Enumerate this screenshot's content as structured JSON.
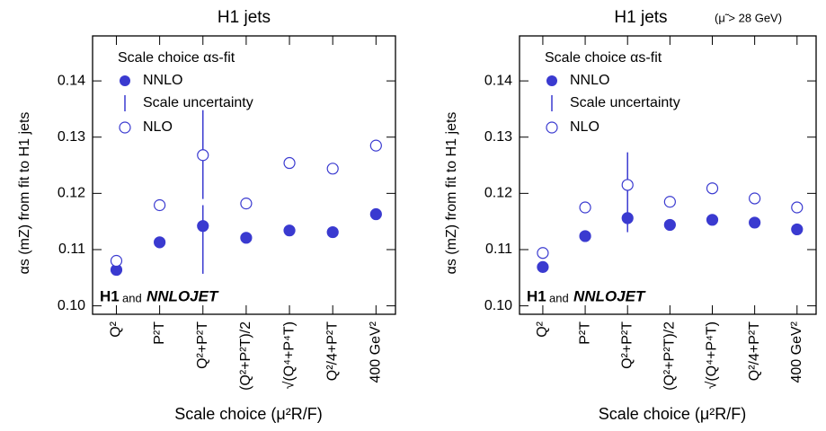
{
  "chart_data": [
    {
      "type": "scatter",
      "title": "H1 jets",
      "y_label": "αs (mZ) from fit to H1 jets",
      "x_label": "Scale choice (μ²R/F)",
      "legend_title": "Scale choice αs-fit",
      "error_label": "Scale uncertainty",
      "annotation": [
        "H1",
        "and",
        "NNLOJET"
      ],
      "categories": [
        "Q²",
        "P²T",
        "Q²+P²T",
        "(Q²+P²T)/2",
        "√(Q⁴+P⁴T)",
        "Q²/4+P²T",
        "400 GeV²"
      ],
      "ylim": [
        0.0985,
        0.148
      ],
      "yticks": [
        {
          "value": 0.1,
          "label": "0.10"
        },
        0.11,
        0.12,
        0.13,
        0.14
      ],
      "series": [
        {
          "name": "NNLO",
          "color": "#3a3ad0",
          "filled": true,
          "values": [
            0.1064,
            0.1113,
            0.1142,
            0.1121,
            0.1134,
            0.1131,
            0.1163
          ],
          "error_range": [
            null,
            null,
            [
              0.1057,
              0.1179
            ],
            null,
            null,
            null,
            null
          ]
        },
        {
          "name": "NLO",
          "color": "#3a3ad0",
          "filled": false,
          "values": [
            0.108,
            0.1179,
            0.1268,
            0.1182,
            0.1254,
            0.1244,
            0.1285
          ],
          "error_range": [
            null,
            null,
            [
              0.119,
              0.1348
            ],
            null,
            null,
            null,
            null
          ]
        }
      ]
    },
    {
      "type": "scatter",
      "title": "H1 jets",
      "subtitle": "(μ̃ > 28 GeV)",
      "y_label": "αs (mZ) from fit to H1 jets",
      "x_label": "Scale choice (μ²R/F)",
      "legend_title": "Scale choice αs-fit",
      "error_label": "Scale uncertainty",
      "annotation": [
        "H1",
        "and",
        "NNLOJET"
      ],
      "categories": [
        "Q²",
        "P²T",
        "Q²+P²T",
        "(Q²+P²T)/2",
        "√(Q⁴+P⁴T)",
        "Q²/4+P²T",
        "400 GeV²"
      ],
      "ylim": [
        0.0985,
        0.148
      ],
      "yticks": [
        {
          "value": 0.1,
          "label": "0.10"
        },
        0.11,
        0.12,
        0.13,
        0.14
      ],
      "series": [
        {
          "name": "NNLO",
          "color": "#3a3ad0",
          "filled": true,
          "values": [
            0.1069,
            0.1124,
            0.1156,
            0.1144,
            0.1153,
            0.1148,
            0.1136
          ],
          "error_range": [
            null,
            null,
            [
              0.1131,
              0.1167
            ],
            null,
            null,
            null,
            null
          ]
        },
        {
          "name": "NLO",
          "color": "#3a3ad0",
          "filled": false,
          "values": [
            0.1094,
            0.1175,
            0.1215,
            0.1185,
            0.1209,
            0.1191,
            0.1175
          ],
          "error_range": [
            null,
            null,
            [
              0.1158,
              0.1273
            ],
            null,
            null,
            null,
            null
          ]
        }
      ]
    }
  ]
}
